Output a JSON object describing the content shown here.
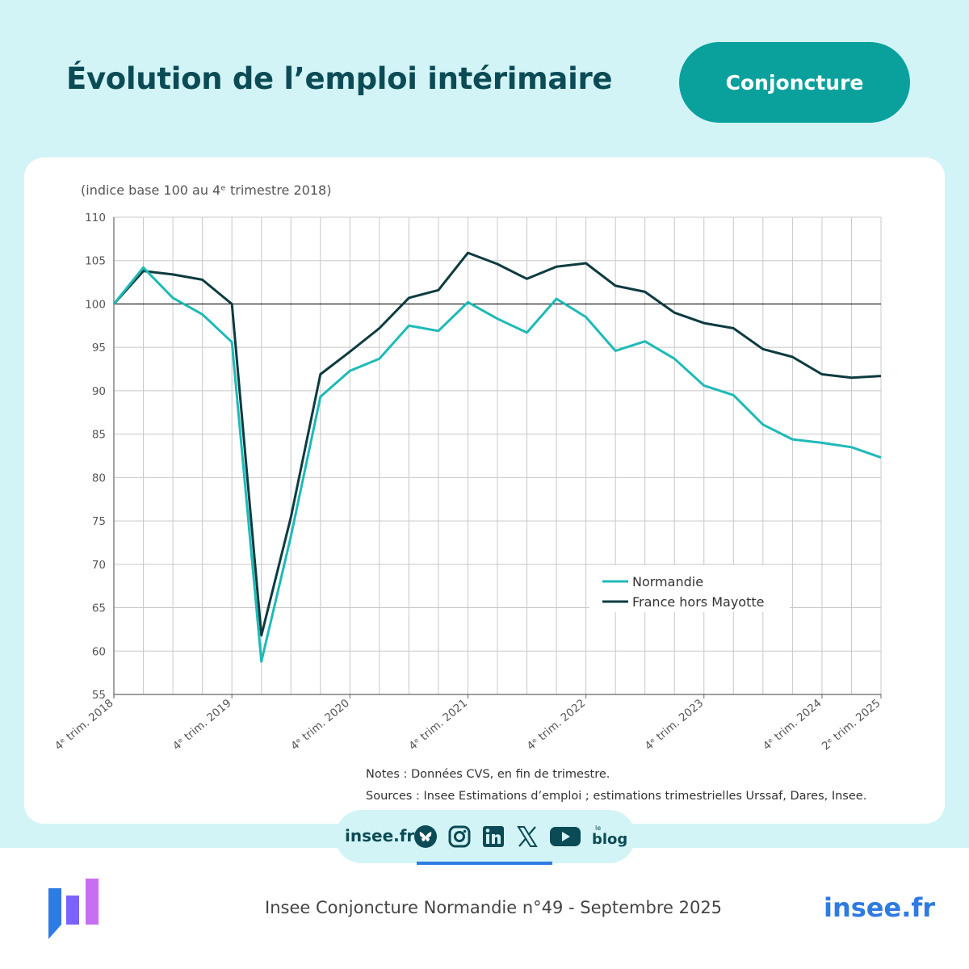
{
  "header": {
    "title": "Évolution de l’emploi intérimaire",
    "badge": "Conjoncture"
  },
  "chart_data": {
    "type": "line",
    "title": "",
    "ylabel": "(indice base 100 au 4ᵉ trimestre 2018)",
    "xlabel": "",
    "ylim": [
      55,
      110
    ],
    "yticks": [
      55,
      60,
      65,
      70,
      75,
      80,
      85,
      90,
      95,
      100,
      105,
      110
    ],
    "grid": true,
    "reference_line": 100,
    "legend_position": "bottom-right",
    "x": [
      "T4 2018",
      "T1 2019",
      "T2 2019",
      "T3 2019",
      "T4 2019",
      "T1 2020",
      "T2 2020",
      "T3 2020",
      "T4 2020",
      "T1 2021",
      "T2 2021",
      "T3 2021",
      "T4 2021",
      "T1 2022",
      "T2 2022",
      "T3 2022",
      "T4 2022",
      "T1 2023",
      "T2 2023",
      "T3 2023",
      "T4 2023",
      "T1 2024",
      "T2 2024",
      "T3 2024",
      "T4 2024",
      "T1 2025",
      "T2 2025"
    ],
    "x_tick_labels": [
      {
        "index": 0,
        "label": "4ᵉ trim. 2018"
      },
      {
        "index": 4,
        "label": "4ᵉ trim. 2019"
      },
      {
        "index": 8,
        "label": "4ᵉ trim. 2020"
      },
      {
        "index": 12,
        "label": "4ᵉ trim. 2021"
      },
      {
        "index": 16,
        "label": "4ᵉ trim. 2022"
      },
      {
        "index": 20,
        "label": "4ᵉ trim. 2023"
      },
      {
        "index": 24,
        "label": "4ᵉ trim. 2024"
      },
      {
        "index": 26,
        "label": "2ᵉ trim. 2025"
      }
    ],
    "series": [
      {
        "name": "Normandie",
        "color": "#1ebab7",
        "values": [
          100,
          104.2,
          100.7,
          98.8,
          95.6,
          58.8,
          73.2,
          89.3,
          92.3,
          93.7,
          97.5,
          96.9,
          100.2,
          98.3,
          96.7,
          100.6,
          98.5,
          94.6,
          95.7,
          93.7,
          90.6,
          89.5,
          86.1,
          84.4,
          84.0,
          83.5,
          82.3
        ]
      },
      {
        "name": "France hors Mayotte",
        "color": "#0d3b40",
        "values": [
          100,
          103.8,
          103.4,
          102.8,
          100.0,
          61.8,
          75.4,
          91.9,
          94.5,
          97.2,
          100.7,
          101.6,
          105.9,
          104.6,
          102.9,
          104.3,
          104.7,
          102.1,
          101.4,
          99.0,
          97.8,
          97.2,
          94.8,
          93.9,
          91.9,
          91.5,
          91.7
        ]
      }
    ]
  },
  "notes": {
    "line1": "Notes : Données CVS, en fin de trimestre.",
    "line2": "Sources : Insee Estimations d’emploi ; estimations trimestrielles Urssaf, Dares, Insee."
  },
  "social": {
    "site": "insee.fr",
    "icons": [
      "bluesky-icon",
      "instagram-icon",
      "linkedin-icon",
      "x-icon",
      "youtube-icon",
      "blog-icon"
    ],
    "blog_label": "blog"
  },
  "footer": {
    "publication": "Insee Conjoncture Normandie n°49 - Septembre 2025",
    "site": "insee.fr",
    "accent": "#2e7be3"
  }
}
